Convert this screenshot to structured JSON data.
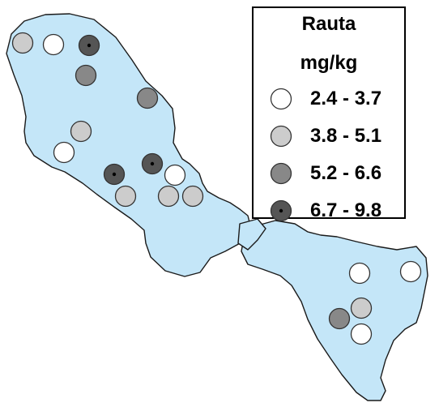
{
  "legend": {
    "title": "Rauta",
    "unit": "mg/kg",
    "classes": [
      {
        "label": "2.4 - 3.7",
        "color": "#ffffff",
        "dot": false
      },
      {
        "label": "3.8 - 5.1",
        "color": "#cccccc",
        "dot": false
      },
      {
        "label": "5.2 - 6.6",
        "color": "#888888",
        "dot": false
      },
      {
        "label": "6.7 - 9.8",
        "color": "#555555",
        "dot": true
      }
    ]
  },
  "sites": [
    {
      "cls": 1
    },
    {
      "cls": 0
    },
    {
      "cls": 3
    },
    {
      "cls": 2
    },
    {
      "cls": 2
    },
    {
      "cls": 1
    },
    {
      "cls": 0
    },
    {
      "cls": 3
    },
    {
      "cls": 3
    },
    {
      "cls": 0
    },
    {
      "cls": 1
    },
    {
      "cls": 1
    },
    {
      "cls": 1
    },
    {
      "cls": 0
    },
    {
      "cls": 0
    },
    {
      "cls": 1
    },
    {
      "cls": 2
    },
    {
      "cls": 0
    }
  ]
}
